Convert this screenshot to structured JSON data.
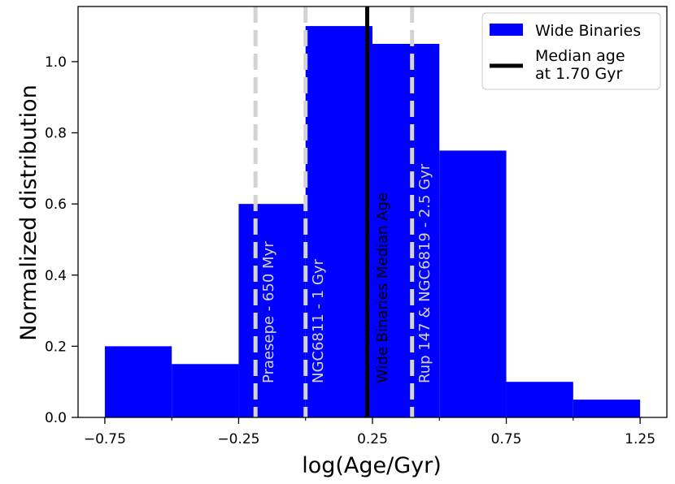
{
  "chart_data": {
    "type": "bar",
    "xlabel": "log(Age/Gyr)",
    "ylabel": "Normalized distribution",
    "xlim": [
      -0.85,
      1.35
    ],
    "ylim": [
      0,
      1.155
    ],
    "xticks": [
      -0.75,
      -0.25,
      0.25,
      0.75,
      1.25
    ],
    "xtick_labels": [
      "−0.75",
      "−0.25",
      "0.25",
      "0.75",
      "1.25"
    ],
    "xminor": [
      -0.5,
      0.0,
      0.5,
      1.0
    ],
    "yticks": [
      0.0,
      0.2,
      0.4,
      0.6,
      0.8,
      1.0
    ],
    "ytick_labels": [
      "0.0",
      "0.2",
      "0.4",
      "0.6",
      "0.8",
      "1.0"
    ],
    "bin_edges": [
      -0.75,
      -0.5,
      -0.25,
      0.0,
      0.25,
      0.5,
      0.75,
      1.0,
      1.25
    ],
    "series": [
      {
        "name": "Wide Binaries",
        "color": "#0000ff",
        "values": [
          0.2,
          0.15,
          0.6,
          1.1,
          1.05,
          0.75,
          0.1,
          0.05
        ]
      }
    ],
    "vlines": [
      {
        "x": -0.187,
        "color": "#d3d3d3",
        "style": "dashed",
        "label": "Praesepe - 650 Myr",
        "text_x": -0.12
      },
      {
        "x": 0.0,
        "color": "#d3d3d3",
        "style": "dashed",
        "label": "NGC6811 - 1 Gyr",
        "text_x": 0.065
      },
      {
        "x": 0.2304,
        "color": "#000000",
        "style": "solid",
        "label": "Wide Binaries Median Age",
        "text_x": 0.305
      },
      {
        "x": 0.398,
        "color": "#d3d3d3",
        "style": "dashed",
        "label": "Rup 147 & NGC6819 - 2.5 Gyr",
        "text_x": 0.463
      }
    ],
    "legend": {
      "position": "top-right",
      "entries": [
        {
          "label": "Wide Binaries",
          "kind": "patch",
          "color": "#0000ff"
        },
        {
          "label": "Median age\nat 1.70 Gyr",
          "kind": "line",
          "color": "#000000"
        }
      ]
    }
  }
}
